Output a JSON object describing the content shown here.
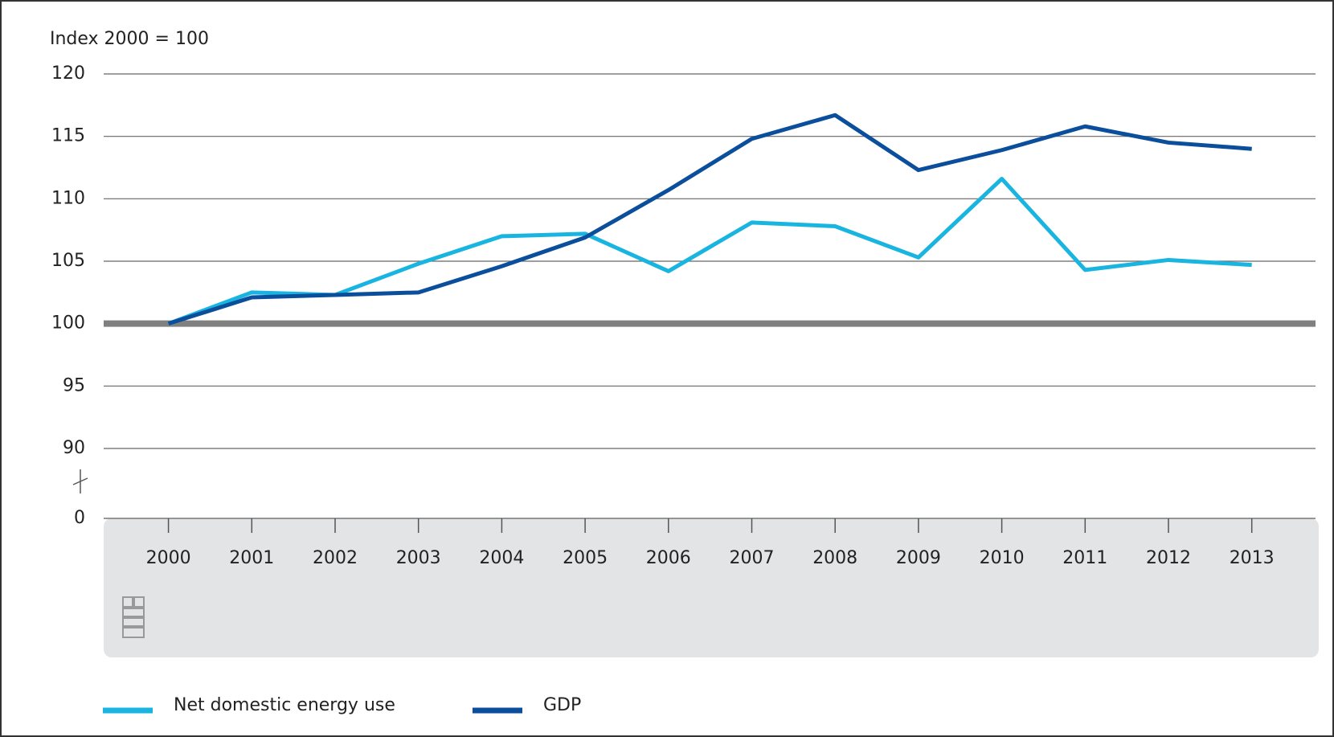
{
  "chart_data": {
    "type": "line",
    "y_axis_label": "Index 2000 = 100",
    "x": [
      "2000",
      "2001",
      "2002",
      "2003",
      "2004",
      "2005",
      "2006",
      "2007",
      "2008",
      "2009",
      "2010",
      "2011",
      "2012",
      "2013"
    ],
    "series": [
      {
        "name": "Net domestic energy use",
        "color": "#19b5e0",
        "values": [
          100,
          102.5,
          102.3,
          104.8,
          107.0,
          107.2,
          104.2,
          108.1,
          107.8,
          105.3,
          111.6,
          104.3,
          105.1,
          104.7
        ]
      },
      {
        "name": "GDP",
        "color": "#0b4f9c",
        "values": [
          100,
          102.1,
          102.3,
          102.5,
          104.6,
          106.9,
          110.7,
          114.8,
          116.7,
          112.3,
          113.9,
          115.8,
          114.5,
          114.0
        ]
      }
    ],
    "ylim": [
      0,
      120
    ],
    "yticks": [
      0,
      90,
      95,
      100,
      105,
      110,
      115,
      120
    ],
    "baseline": 100,
    "grid": true,
    "legend": "bottom"
  }
}
